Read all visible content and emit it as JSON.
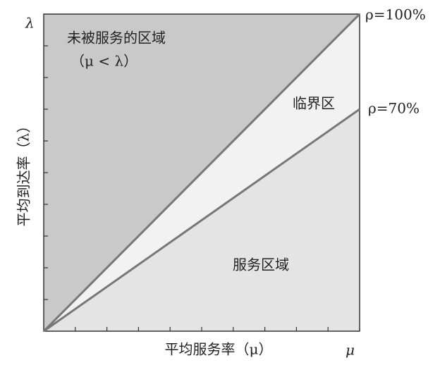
{
  "axes": {
    "y_end": "λ",
    "x_end": "μ",
    "y_label": "平均到达率（λ）",
    "x_label": "平均服务率（μ）"
  },
  "regions": [
    {
      "label": "未被服务的区域",
      "note": "（μ < λ）"
    },
    {
      "label": "临界区"
    },
    {
      "label": "服务区域"
    }
  ],
  "lines": [
    {
      "label": "ρ=100%"
    },
    {
      "label": "ρ=70%"
    }
  ]
}
